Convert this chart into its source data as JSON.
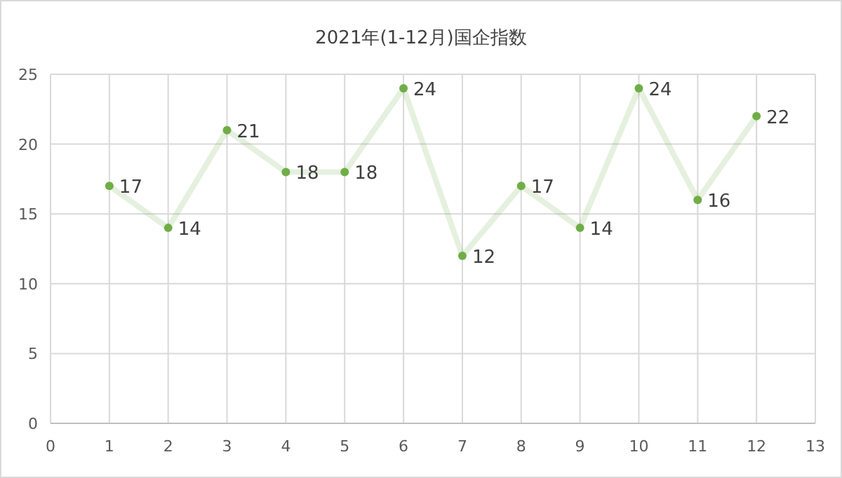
{
  "chart_data": {
    "type": "line",
    "title": "2021年(1-12月)国企指数",
    "x": [
      1,
      2,
      3,
      4,
      5,
      6,
      7,
      8,
      9,
      10,
      11,
      12
    ],
    "series": [
      {
        "color": "#70ad47",
        "values": [
          17,
          14,
          21,
          18,
          18,
          24,
          12,
          17,
          14,
          24,
          16,
          22
        ]
      }
    ],
    "xlim": [
      0,
      13
    ],
    "xticks": [
      0,
      1,
      2,
      3,
      4,
      5,
      6,
      7,
      8,
      9,
      10,
      11,
      12,
      13
    ],
    "ylim": [
      0,
      25
    ],
    "yticks": [
      0,
      5,
      10,
      15,
      20,
      25
    ],
    "grid": true,
    "marker": "circle",
    "line_style": "solid",
    "data_labels": true
  }
}
